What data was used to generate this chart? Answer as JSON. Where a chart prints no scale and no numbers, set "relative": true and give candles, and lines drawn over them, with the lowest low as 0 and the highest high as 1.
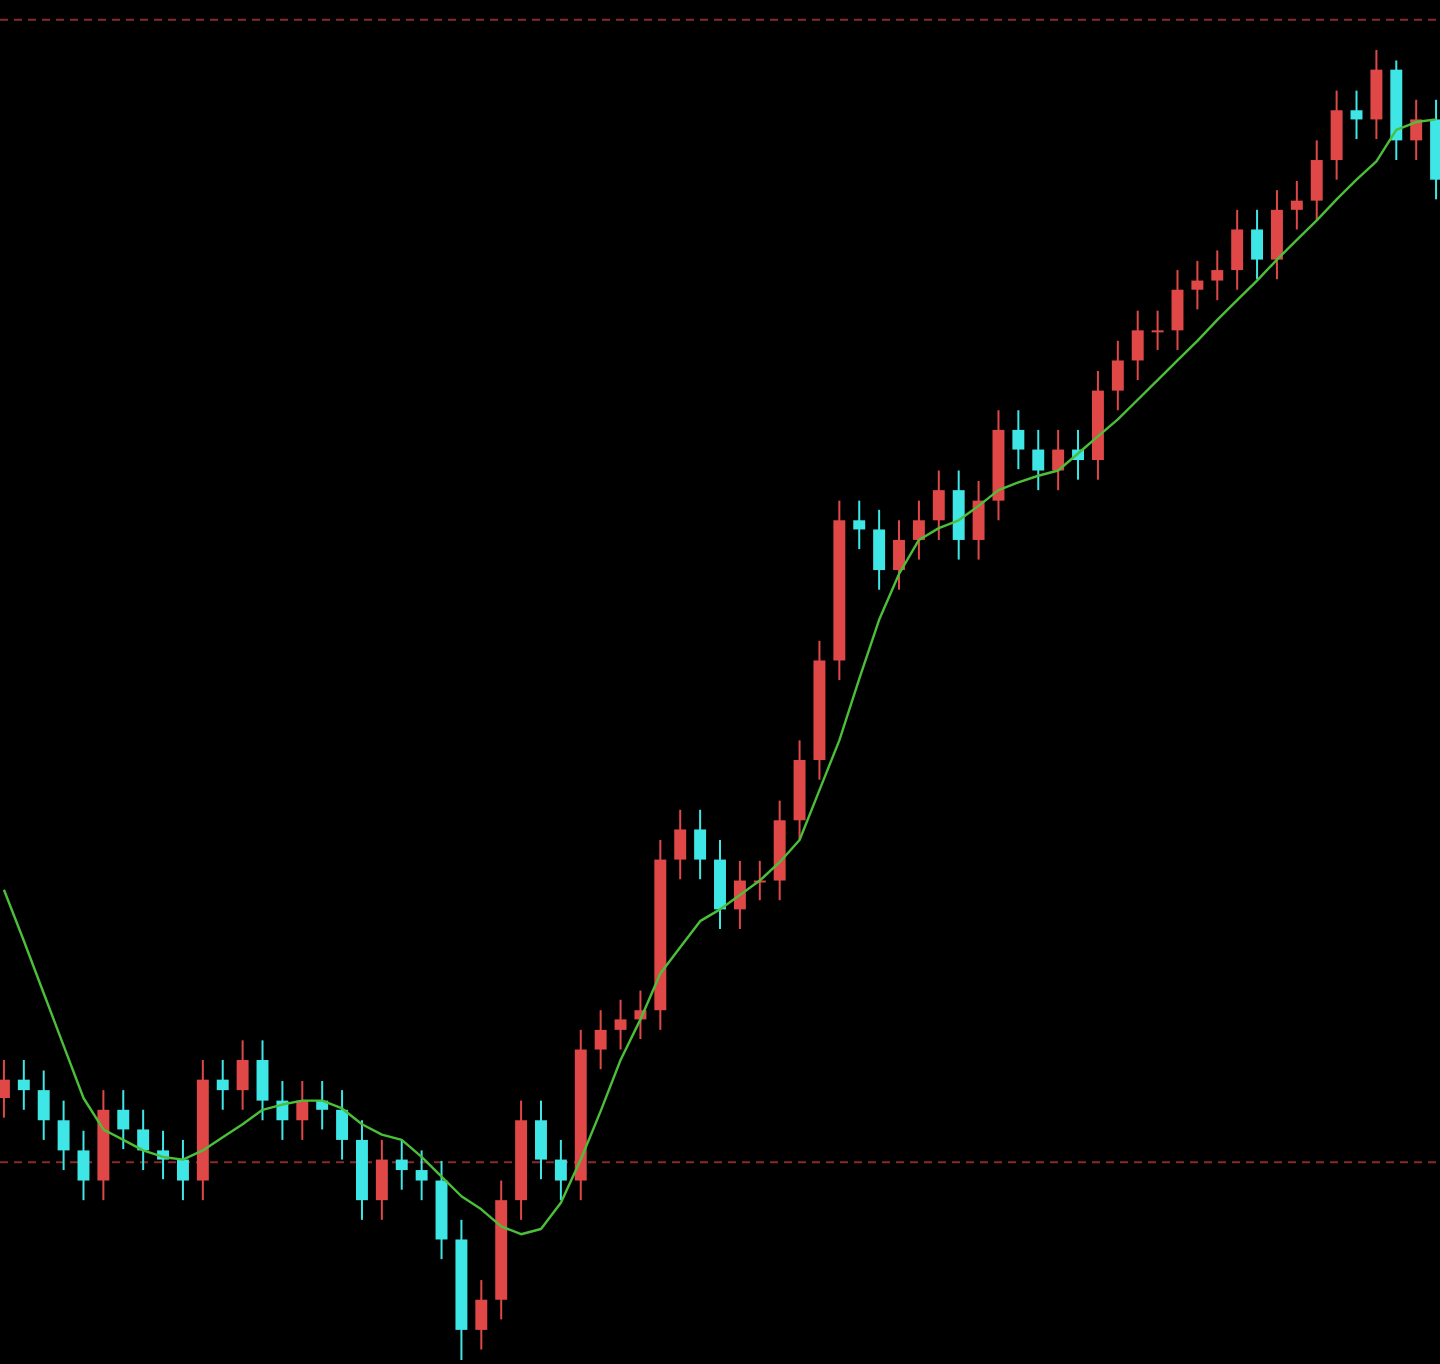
{
  "chart_data": {
    "type": "candlestick",
    "relative": true,
    "categories": [
      null,
      null,
      null,
      null,
      null,
      null,
      null,
      null,
      null,
      null,
      null,
      null,
      null,
      null,
      null,
      null,
      null,
      null,
      null,
      null,
      null,
      null,
      null,
      null,
      null,
      null,
      null,
      null,
      null,
      null,
      null,
      null,
      null,
      null,
      null,
      null,
      null,
      null,
      null,
      null,
      null,
      null,
      null,
      null,
      null,
      null,
      null,
      null,
      null,
      null,
      null,
      null,
      null,
      null,
      null,
      null,
      null,
      null,
      null,
      null,
      null,
      null,
      null,
      null,
      null,
      null,
      null,
      null,
      null,
      null,
      null,
      null,
      null
    ],
    "ohlc": [
      [
        0.2,
        0.229,
        0.185,
        0.214
      ],
      [
        0.214,
        0.229,
        0.191,
        0.206
      ],
      [
        0.206,
        0.221,
        0.168,
        0.183
      ],
      [
        0.183,
        0.198,
        0.145,
        0.16
      ],
      [
        0.16,
        0.175,
        0.122,
        0.137
      ],
      [
        0.137,
        0.206,
        0.122,
        0.191
      ],
      [
        0.191,
        0.206,
        0.161,
        0.176
      ],
      [
        0.176,
        0.191,
        0.145,
        0.16
      ],
      [
        0.16,
        0.175,
        0.138,
        0.153
      ],
      [
        0.153,
        0.168,
        0.122,
        0.137
      ],
      [
        0.137,
        0.229,
        0.122,
        0.214
      ],
      [
        0.214,
        0.229,
        0.191,
        0.206
      ],
      [
        0.206,
        0.244,
        0.191,
        0.229
      ],
      [
        0.229,
        0.244,
        0.183,
        0.198
      ],
      [
        0.198,
        0.213,
        0.168,
        0.183
      ],
      [
        0.183,
        0.213,
        0.168,
        0.198
      ],
      [
        0.198,
        0.213,
        0.176,
        0.191
      ],
      [
        0.191,
        0.206,
        0.153,
        0.168
      ],
      [
        0.168,
        0.183,
        0.107,
        0.122
      ],
      [
        0.122,
        0.168,
        0.107,
        0.153
      ],
      [
        0.153,
        0.168,
        0.13,
        0.145
      ],
      [
        0.145,
        0.16,
        0.122,
        0.137
      ],
      [
        0.137,
        0.152,
        0.077,
        0.092
      ],
      [
        0.092,
        0.107,
        0.0,
        0.023
      ],
      [
        0.023,
        0.061,
        0.008,
        0.046
      ],
      [
        0.046,
        0.137,
        0.031,
        0.122
      ],
      [
        0.122,
        0.198,
        0.107,
        0.183
      ],
      [
        0.183,
        0.198,
        0.138,
        0.153
      ],
      [
        0.153,
        0.168,
        0.122,
        0.137
      ],
      [
        0.137,
        0.252,
        0.122,
        0.237
      ],
      [
        0.237,
        0.267,
        0.222,
        0.252
      ],
      [
        0.252,
        0.275,
        0.237,
        0.26
      ],
      [
        0.26,
        0.282,
        0.245,
        0.267
      ],
      [
        0.267,
        0.397,
        0.252,
        0.382
      ],
      [
        0.382,
        0.42,
        0.367,
        0.405
      ],
      [
        0.405,
        0.42,
        0.367,
        0.382
      ],
      [
        0.382,
        0.397,
        0.329,
        0.344
      ],
      [
        0.344,
        0.381,
        0.329,
        0.366
      ],
      [
        0.366,
        0.381,
        0.351,
        0.366
      ],
      [
        0.366,
        0.427,
        0.351,
        0.412
      ],
      [
        0.412,
        0.473,
        0.397,
        0.458
      ],
      [
        0.458,
        0.549,
        0.443,
        0.534
      ],
      [
        0.534,
        0.656,
        0.519,
        0.641
      ],
      [
        0.641,
        0.656,
        0.619,
        0.634
      ],
      [
        0.634,
        0.649,
        0.588,
        0.603
      ],
      [
        0.603,
        0.641,
        0.588,
        0.626
      ],
      [
        0.626,
        0.656,
        0.611,
        0.641
      ],
      [
        0.641,
        0.679,
        0.626,
        0.664
      ],
      [
        0.664,
        0.679,
        0.611,
        0.626
      ],
      [
        0.626,
        0.671,
        0.611,
        0.656
      ],
      [
        0.656,
        0.725,
        0.641,
        0.71
      ],
      [
        0.71,
        0.725,
        0.68,
        0.695
      ],
      [
        0.695,
        0.71,
        0.664,
        0.679
      ],
      [
        0.679,
        0.71,
        0.664,
        0.695
      ],
      [
        0.695,
        0.71,
        0.672,
        0.687
      ],
      [
        0.687,
        0.755,
        0.672,
        0.74
      ],
      [
        0.74,
        0.778,
        0.725,
        0.763
      ],
      [
        0.763,
        0.801,
        0.748,
        0.786
      ],
      [
        0.786,
        0.801,
        0.771,
        0.786
      ],
      [
        0.786,
        0.832,
        0.771,
        0.817
      ],
      [
        0.817,
        0.839,
        0.802,
        0.824
      ],
      [
        0.824,
        0.847,
        0.809,
        0.832
      ],
      [
        0.832,
        0.878,
        0.817,
        0.863
      ],
      [
        0.863,
        0.878,
        0.825,
        0.84
      ],
      [
        0.84,
        0.893,
        0.825,
        0.878
      ],
      [
        0.878,
        0.9,
        0.863,
        0.885
      ],
      [
        0.885,
        0.931,
        0.87,
        0.916
      ],
      [
        0.916,
        0.969,
        0.901,
        0.954
      ],
      [
        0.954,
        0.969,
        0.932,
        0.947
      ],
      [
        0.947,
        1.0,
        0.932,
        0.985
      ],
      [
        0.985,
        0.992,
        0.916,
        0.931
      ],
      [
        0.931,
        0.962,
        0.916,
        0.947
      ],
      [
        0.947,
        0.962,
        0.886,
        0.901
      ]
    ],
    "colors": [
      "#e04848",
      "#3ee6e6",
      "#3ee6e6",
      "#3ee6e6",
      "#3ee6e6",
      "#e04848",
      "#3ee6e6",
      "#3ee6e6",
      "#3ee6e6",
      "#3ee6e6",
      "#e04848",
      "#3ee6e6",
      "#e04848",
      "#3ee6e6",
      "#3ee6e6",
      "#e04848",
      "#3ee6e6",
      "#3ee6e6",
      "#3ee6e6",
      "#e04848",
      "#3ee6e6",
      "#3ee6e6",
      "#3ee6e6",
      "#3ee6e6",
      "#e04848",
      "#e04848",
      "#e04848",
      "#3ee6e6",
      "#3ee6e6",
      "#e04848",
      "#e04848",
      "#e04848",
      "#e04848",
      "#e04848",
      "#e04848",
      "#3ee6e6",
      "#3ee6e6",
      "#e04848",
      "#e04848",
      "#e04848",
      "#e04848",
      "#e04848",
      "#e04848",
      "#3ee6e6",
      "#3ee6e6",
      "#e04848",
      "#e04848",
      "#e04848",
      "#3ee6e6",
      "#e04848",
      "#e04848",
      "#3ee6e6",
      "#3ee6e6",
      "#e04848",
      "#3ee6e6",
      "#e04848",
      "#e04848",
      "#e04848",
      "#e04848",
      "#e04848",
      "#e04848",
      "#e04848",
      "#e04848",
      "#3ee6e6",
      "#e04848",
      "#e04848",
      "#e04848",
      "#e04848",
      "#3ee6e6",
      "#e04848",
      "#3ee6e6",
      "#e04848",
      "#3ee6e6"
    ],
    "series": [
      {
        "type": "line",
        "color": "#4cbf3a",
        "values": [
          0.359,
          0.32,
          0.28,
          0.24,
          0.2,
          0.176,
          0.168,
          0.16,
          0.155,
          0.153,
          0.16,
          0.17,
          0.18,
          0.191,
          0.195,
          0.198,
          0.198,
          0.192,
          0.18,
          0.172,
          0.168,
          0.155,
          0.14,
          0.125,
          0.115,
          0.102,
          0.096,
          0.1,
          0.12,
          0.153,
          0.19,
          0.229,
          0.26,
          0.295,
          0.315,
          0.335,
          0.344,
          0.355,
          0.366,
          0.38,
          0.397,
          0.435,
          0.473,
          0.52,
          0.565,
          0.6,
          0.626,
          0.635,
          0.641,
          0.652,
          0.664,
          0.67,
          0.675,
          0.679,
          0.692,
          0.705,
          0.718,
          0.733,
          0.748,
          0.763,
          0.778,
          0.794,
          0.809,
          0.824,
          0.84,
          0.855,
          0.87,
          0.886,
          0.901,
          0.915,
          0.939,
          0.945,
          0.947
        ]
      }
    ],
    "ref_lines": [
      {
        "axis": "y",
        "value": 0.151,
        "color": "#8b2a2a",
        "line_style": "dashed"
      },
      {
        "axis": "y",
        "value": 1.023,
        "color": "#8b2a2a",
        "line_style": "dashed"
      }
    ]
  }
}
